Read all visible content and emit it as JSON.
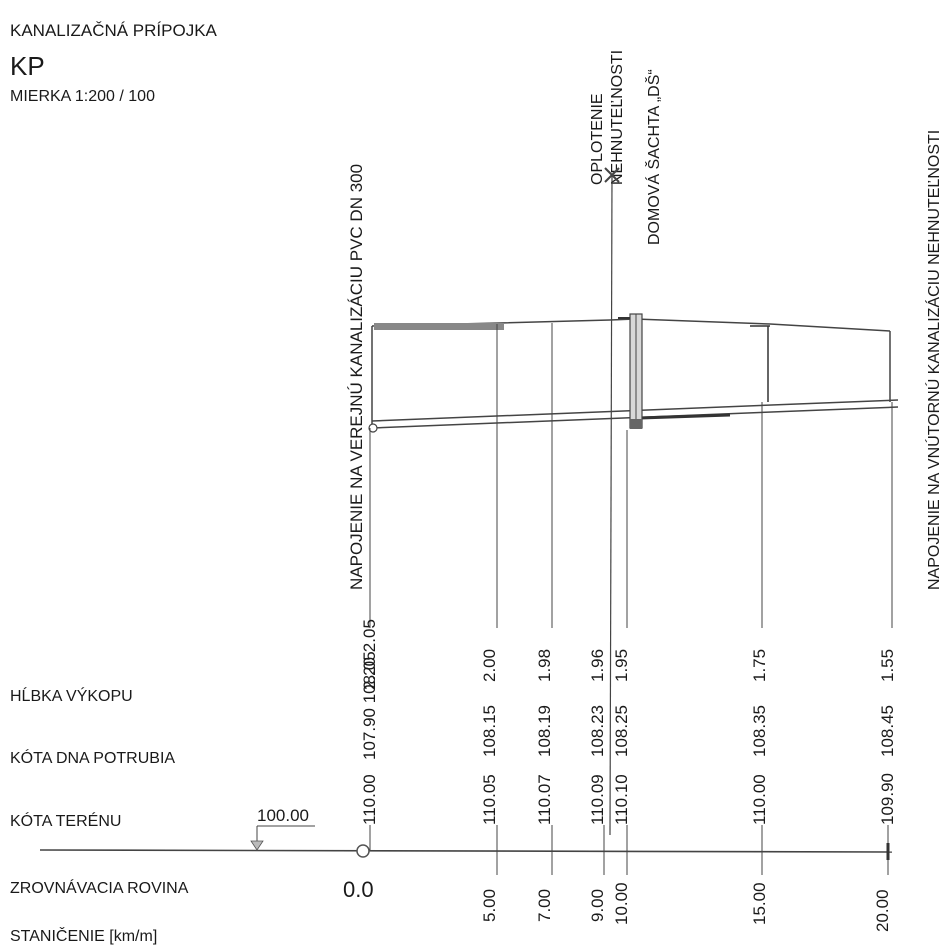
{
  "header": {
    "title": "KANALIZAČNÁ PRÍPOJKA",
    "code": "KP",
    "scale": "MIERKA 1:200 / 100"
  },
  "annotations": {
    "connection_public": "NAPOJENIE NA VEREJNÚ KANALIZÁCIU PVC DN 300",
    "fence_line1": "OPLOTENIE",
    "fence_line2": "NEHNUTEĽNOSTI",
    "manhole": "DOMOVÁ ŠACHTA „DŠ“",
    "connection_internal": "NAPOJENIE NA VNÚTORNÚ KANALIZÁCIU NEHNUTEĽNOSTI"
  },
  "rows": {
    "depth": "HĹBKA VÝKOPU",
    "pipe_bottom": "KÓTA DNA POTRUBIA",
    "terrain": "KÓTA TERÉNU",
    "datum": "ZROVNÁVACIA ROVINA",
    "chainage": "STANIČENIE  [km/m]"
  },
  "datum_value": "100.00",
  "start_chainage": "0.0",
  "stations": [
    {
      "chainage": "",
      "terrain": "110.00",
      "pipe_bottom": "107.90 108.05",
      "depth": "2.20 2.05"
    },
    {
      "chainage": "5.00",
      "terrain": "110.05",
      "pipe_bottom": "108.15",
      "depth": "2.00"
    },
    {
      "chainage": "7.00",
      "terrain": "110.07",
      "pipe_bottom": "108.19",
      "depth": "1.98"
    },
    {
      "chainage": "9.00",
      "terrain": "110.09",
      "pipe_bottom": "108.23",
      "depth": "1.96"
    },
    {
      "chainage": "10.00",
      "terrain": "110.10",
      "pipe_bottom": "108.25",
      "depth": "1.95"
    },
    {
      "chainage": "15.00",
      "terrain": "110.00",
      "pipe_bottom": "108.35",
      "depth": "1.75"
    },
    {
      "chainage": "20.00",
      "terrain": "109.90",
      "pipe_bottom": "108.45",
      "depth": "1.55"
    }
  ]
}
